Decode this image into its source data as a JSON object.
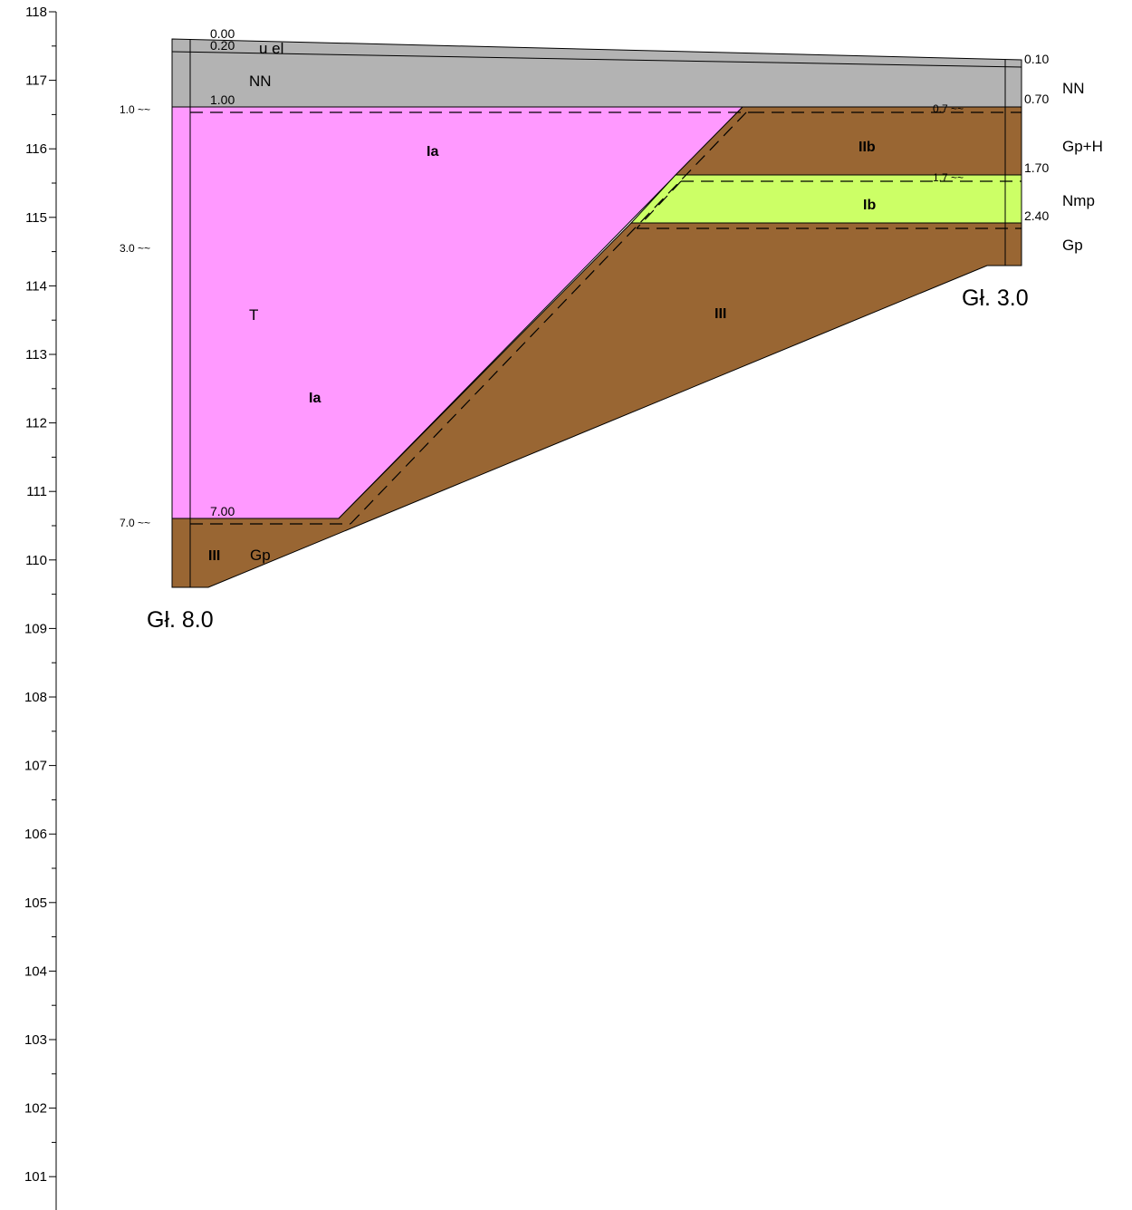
{
  "axis": {
    "ticks": [
      "118",
      "117",
      "116",
      "115",
      "114",
      "113",
      "112",
      "111",
      "110",
      "109",
      "108",
      "107",
      "106",
      "105",
      "104",
      "103",
      "102",
      "101"
    ]
  },
  "colors": {
    "fill_gray": "#b3b3b3",
    "fill_pink": "#ff99ff",
    "fill_brown": "#996633",
    "fill_green": "#ccff66",
    "line": "#000000"
  },
  "boreholes": {
    "left": {
      "caption": "Gł. 8.0",
      "depths": [
        "0.00",
        "0.20",
        "1.00",
        "7.00"
      ],
      "water": [
        "1.0 ~~",
        "3.0 ~~",
        "7.0 ~~"
      ]
    },
    "right": {
      "caption": "Gł. 3.0",
      "depths": [
        "0.10",
        "0.70",
        "1.70",
        "2.40"
      ],
      "water": [
        "0.7 ~~",
        "1.7 ~~"
      ],
      "soils": [
        "NN",
        "Gp+H",
        "Nmp",
        "Gp"
      ]
    }
  },
  "soils": {
    "left_top": "u  el",
    "left_nn": "NN",
    "left_t": "T",
    "left_gp": "Gp"
  },
  "layers": {
    "ia_top": "Ia",
    "ia_mid": "Ia",
    "iib": "IIb",
    "ib": "Ib",
    "iii_mid": "III",
    "iii_left": "III"
  }
}
